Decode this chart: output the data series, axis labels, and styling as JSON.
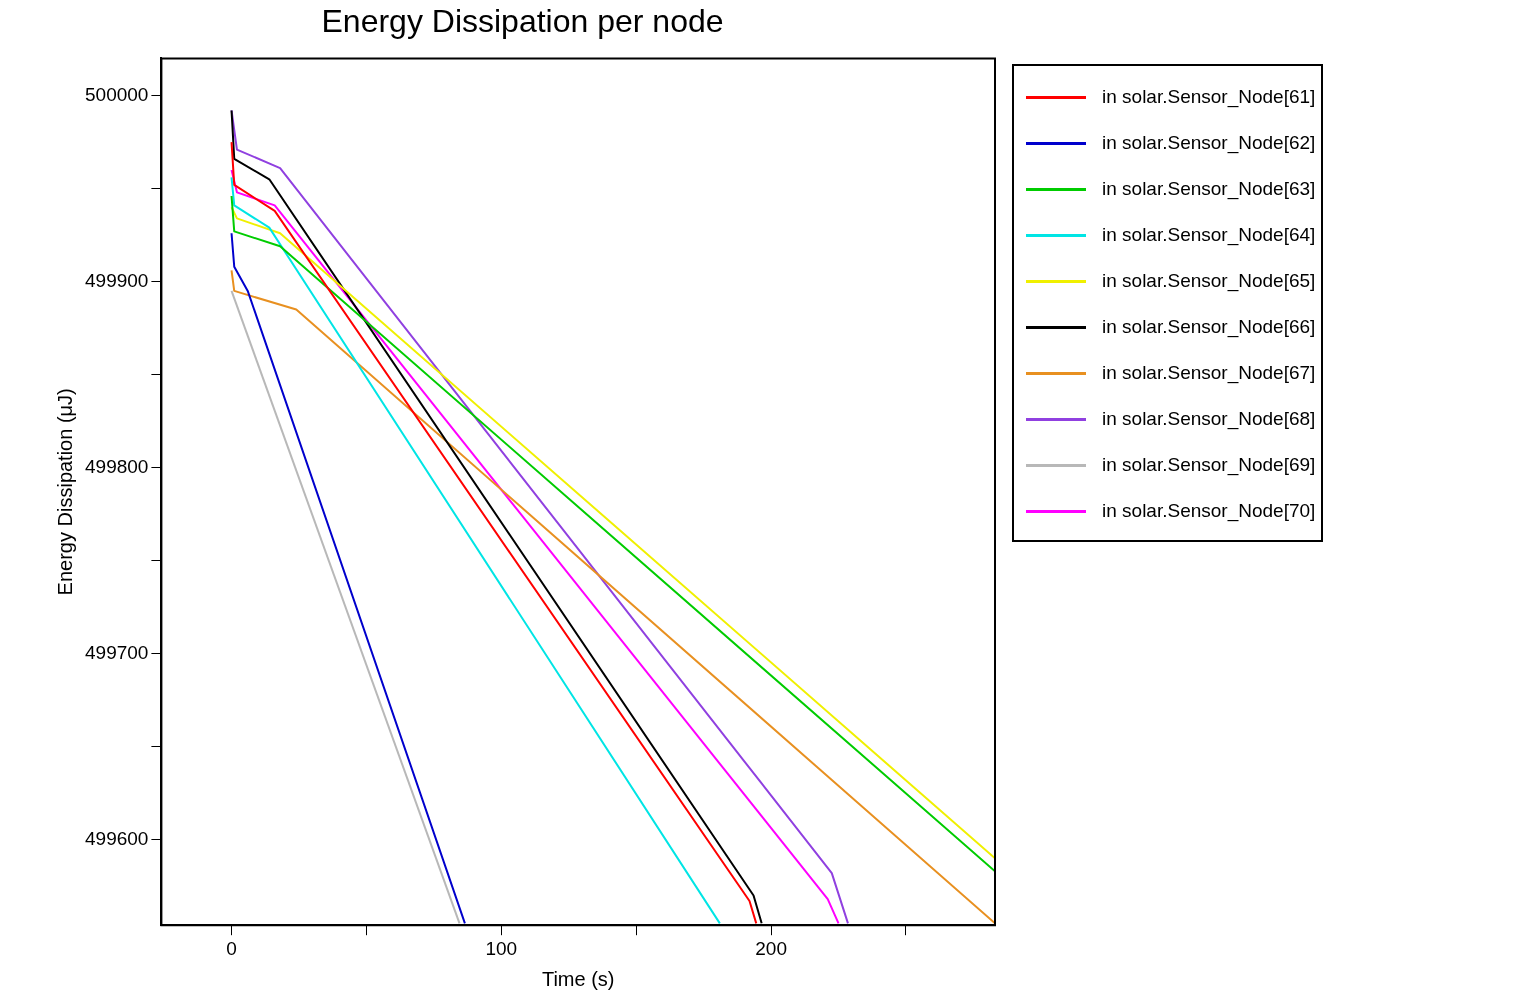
{
  "chart_data": {
    "type": "line",
    "title": "Energy Dissipation per node",
    "xlabel": "Time (s)",
    "ylabel": "Energy Dissipation (μJ)",
    "xlim": [
      -26,
      283
    ],
    "xticks": [
      0,
      {
        "value": 50,
        "label": null
      },
      100,
      {
        "value": 150,
        "label": null
      },
      200,
      {
        "value": 250,
        "label": null
      }
    ],
    "ylim": [
      499554,
      500020
    ],
    "yticks": [
      499600,
      {
        "value": 499650,
        "label": null
      },
      499700,
      {
        "value": 499750,
        "label": null
      },
      499800,
      {
        "value": 499850,
        "label": null
      },
      499900,
      {
        "value": 499950,
        "label": null
      },
      500000
    ],
    "grid": false,
    "legend": "right",
    "line_style": "solid",
    "series": [
      {
        "name": "in solar.Sensor_Node[61]",
        "color": "#ff0000",
        "x": [
          0,
          1,
          16,
          192,
          194.5
        ],
        "values": [
          499975,
          499952,
          499938,
          499567,
          499555
        ]
      },
      {
        "name": "in solar.Sensor_Node[62]",
        "color": "#0000cc",
        "x": [
          0,
          1,
          6,
          86.5
        ],
        "values": [
          499926,
          499908,
          499895,
          499555
        ]
      },
      {
        "name": "in solar.Sensor_Node[63]",
        "color": "#00cc00",
        "x": [
          0,
          1,
          18,
          283
        ],
        "values": [
          499946,
          499927,
          499919,
          499583
        ]
      },
      {
        "name": "in solar.Sensor_Node[64]",
        "color": "#00e5e5",
        "x": [
          0,
          1,
          14,
          181
        ],
        "values": [
          499956,
          499941,
          499929,
          499555
        ]
      },
      {
        "name": "in solar.Sensor_Node[65]",
        "color": "#f0f000",
        "x": [
          0,
          2,
          18,
          283
        ],
        "values": [
          499940,
          499934,
          499926,
          499590
        ]
      },
      {
        "name": "in solar.Sensor_Node[66]",
        "color": "#000000",
        "x": [
          0,
          1,
          14,
          193.5,
          196.5
        ],
        "values": [
          499992,
          499966,
          499955,
          499570,
          499555
        ]
      },
      {
        "name": "in solar.Sensor_Node[67]",
        "color": "#e89020",
        "x": [
          0,
          1,
          24,
          283
        ],
        "values": [
          499906,
          499895,
          499885,
          499555
        ]
      },
      {
        "name": "in solar.Sensor_Node[68]",
        "color": "#9040e0",
        "x": [
          0,
          2,
          18,
          222.5,
          228.5
        ],
        "values": [
          499992,
          499971,
          499961,
          499582,
          499555
        ]
      },
      {
        "name": "in solar.Sensor_Node[69]",
        "color": "#b8b8b8",
        "x": [
          0,
          84.5
        ],
        "values": [
          499895,
          499555
        ]
      },
      {
        "name": "in solar.Sensor_Node[70]",
        "color": "#ff00ff",
        "x": [
          0,
          2,
          16,
          221,
          225
        ],
        "values": [
          499960,
          499948,
          499941,
          499568,
          499555
        ]
      }
    ]
  }
}
